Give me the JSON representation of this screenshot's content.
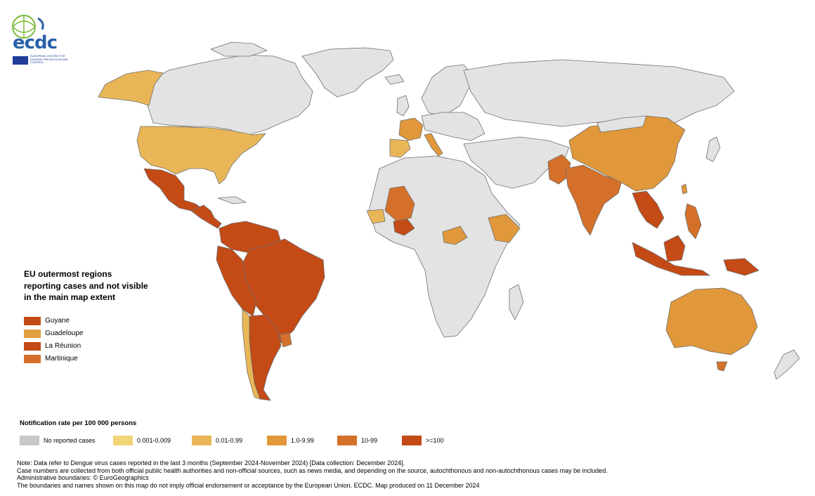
{
  "logo": {
    "name": "ecdc",
    "subtitle": "EUROPEAN CENTRE FOR DISEASE PREVENTION AND CONTROL"
  },
  "inset": {
    "title": "EU outermost regions reporting cases and not visible in the main map extent",
    "items": [
      {
        "label": "Guyane",
        "color": "#c44a16"
      },
      {
        "label": "Guadeloupe",
        "color": "#e0a040"
      },
      {
        "label": "La Réunion",
        "color": "#c44a16"
      },
      {
        "label": "Martinique",
        "color": "#d5702a"
      }
    ]
  },
  "legend": {
    "title": "Notification rate per 100 000 persons",
    "items": [
      {
        "label": "No reported cases",
        "color": "#c8c8c8"
      },
      {
        "label": "0.001-0.009",
        "color": "#f2d479"
      },
      {
        "label": "0.01-0.99",
        "color": "#e9b657"
      },
      {
        "label": "1.0-9.99",
        "color": "#e0983a"
      },
      {
        "label": "10-99",
        "color": "#d5702a"
      },
      {
        "label": ">=100",
        "color": "#c44a16"
      }
    ]
  },
  "notes": {
    "line1": "Note: Data refer to Dengue virus cases reported in the last 3 months (September 2024-November 2024) [Data collection: December 2024].",
    "line2": "Case numbers are collected from both official public health authorities and non-official sources, such as news media, and depending on the source, autochthonous and non-autochthonous cases may be included.",
    "line3": "Administrative boundaries: © EuroGeographics",
    "line4": "The boundaries and names shown on this map do not imply official endorsement or acceptance by the European Union. ECDC. Map produced on 11 December 2024"
  },
  "map": {
    "no_data_color": "#e3e3e3",
    "border_color": "#6f6f6f"
  }
}
